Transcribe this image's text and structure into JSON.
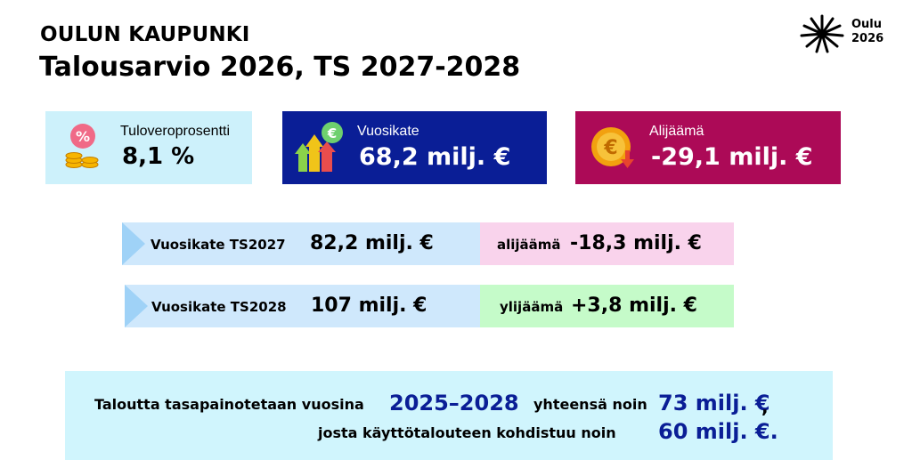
{
  "header": {
    "org": "OULUN KAUPUNKI",
    "title": "Talousarvio 2026, TS 2027-2028"
  },
  "logo": {
    "line1": "Oulu",
    "line2": "2026",
    "icon": "oulu-snowflake-icon"
  },
  "cards": {
    "tax": {
      "label": "Tuloveroprosentti",
      "value": "8,1 %",
      "icon": "percent-coins-icon",
      "color": "#cdf1fb"
    },
    "vuosikate": {
      "label": "Vuosikate",
      "value": "68,2 milj. €",
      "icon": "growth-arrows-euro-icon",
      "color": "#0a1e96"
    },
    "alijaama": {
      "label": "Alijäämä",
      "value": "-29,1 milj. €",
      "icon": "euro-coin-down-icon",
      "color": "#ac0a57"
    }
  },
  "plan_rows": [
    {
      "label": "Vuosikate TS2027",
      "value": "82,2 milj. €",
      "result_label": "alijäämä",
      "result_value": "-18,3 milj. €",
      "result_color": "#f9d3ec"
    },
    {
      "label": "Vuosikate TS2028",
      "value": "107 milj. €",
      "result_label": "ylijäämä",
      "result_value": "+3,8 milj. €",
      "result_color": "#c5fbc9"
    }
  ],
  "summary": {
    "line1_text": "Taloutta tasapainotetaan vuosina",
    "line1_years": "2025–2028",
    "line1_text2": "yhteensä noin",
    "line1_amount": "73 milj. €",
    "line1_end": ",",
    "line2_text": "josta käyttötalouteen kohdistuu noin",
    "line2_amount": "60 milj. €."
  }
}
